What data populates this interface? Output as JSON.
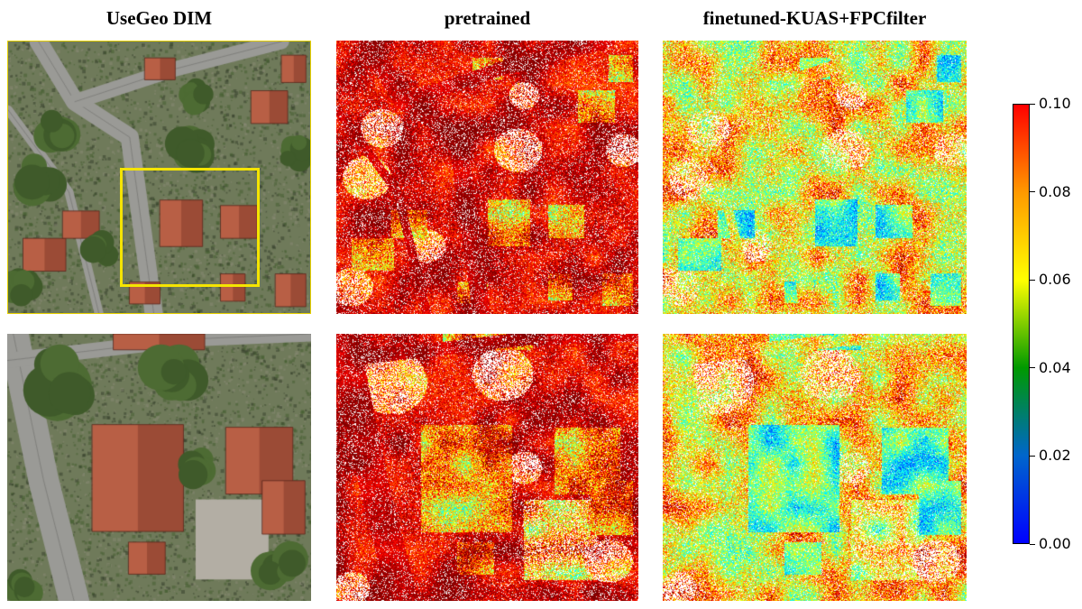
{
  "columns": [
    {
      "title": "UseGeo DIM"
    },
    {
      "title": "pretrained"
    },
    {
      "title": "finetuned-KUAS+FPCfilter"
    }
  ],
  "colorbar": {
    "min": 0.0,
    "max": 0.1,
    "ticks": [
      "0.00",
      "0.02",
      "0.04",
      "0.06",
      "0.08",
      "0.10"
    ],
    "colormap": "jet",
    "stops": [
      "#0000ff",
      "#0066cc",
      "#009900",
      "#ffff00",
      "#ff9900",
      "#ff0000"
    ]
  },
  "colors": {
    "roi_highlight": "#f5e400",
    "roof_tile": "#b85f45",
    "vegetation": "#4d6b33",
    "road": "#9a9a96",
    "empty": "#ffffff"
  }
}
